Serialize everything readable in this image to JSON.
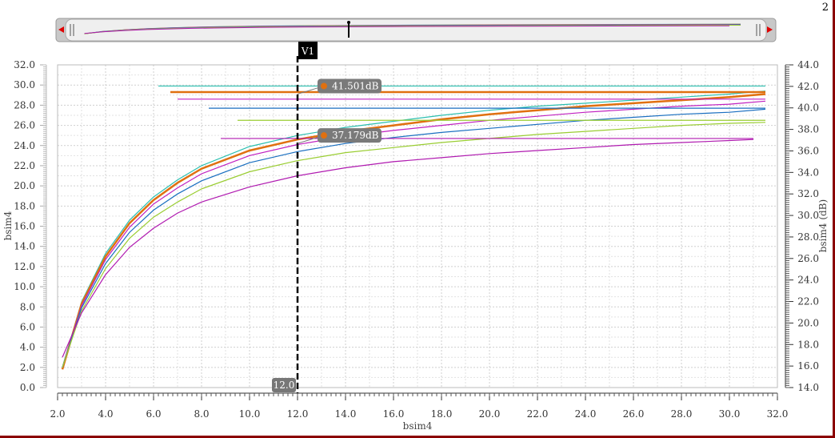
{
  "window": {
    "corner_label": "2"
  },
  "chart_data": {
    "type": "line",
    "title": "",
    "xlabel": "bsim4",
    "ylabel_left": "bsim4",
    "ylabel_right": "bsim4 (dB)",
    "xlim": [
      2.0,
      32.0
    ],
    "ylim_left": [
      0.0,
      32.0
    ],
    "ylim_right": [
      14.0,
      44.0
    ],
    "x_ticks": [
      "2.0",
      "4.0",
      "6.0",
      "8.0",
      "10.0",
      "12.0",
      "14.0",
      "16.0",
      "18.0",
      "20.0",
      "22.0",
      "24.0",
      "26.0",
      "28.0",
      "30.0",
      "32.0"
    ],
    "y_ticks_left": [
      "0.0",
      "2.0",
      "4.0",
      "6.0",
      "8.0",
      "10.0",
      "12.0",
      "14.0",
      "16.0",
      "18.0",
      "20.0",
      "22.0",
      "24.0",
      "26.0",
      "28.0",
      "30.0",
      "32.0"
    ],
    "y_ticks_right": [
      "14.0",
      "16.0",
      "18.0",
      "20.0",
      "22.0",
      "24.0",
      "26.0",
      "28.0",
      "30.0",
      "32.0",
      "34.0",
      "36.0",
      "38.0",
      "40.0",
      "42.0",
      "44.0"
    ],
    "grid": true,
    "cursor": {
      "name": "V1",
      "x": 12.0,
      "x_label": "12.0"
    },
    "markers": [
      {
        "label": "41.501dB",
        "x": 13.1,
        "y": 29.9
      },
      {
        "label": "37.179dB",
        "x": 13.1,
        "y": 25.0
      }
    ],
    "series": [
      {
        "color": "#2bbfb0",
        "x": [
          2.2,
          3,
          4,
          5,
          6,
          7,
          8,
          10,
          12,
          14,
          16,
          18,
          20,
          22,
          24,
          26,
          28,
          30,
          31.5
        ],
        "y": [
          2,
          8.5,
          13.3,
          16.6,
          18.9,
          20.6,
          22,
          23.9,
          25,
          25.8,
          26.4,
          27,
          27.5,
          27.9,
          28.2,
          28.5,
          28.8,
          29.1,
          29.4
        ],
        "flat": {
          "x": [
            6.2,
            31.5
          ],
          "y": 29.9
        }
      },
      {
        "color": "#e07010",
        "width": 2.5,
        "x": [
          2.2,
          3,
          4,
          5,
          6,
          7,
          8,
          10,
          12,
          14,
          16,
          18,
          20,
          22,
          24,
          26,
          28,
          30,
          31.5
        ],
        "y": [
          1.8,
          8.3,
          13,
          16.3,
          18.6,
          20.3,
          21.7,
          23.5,
          24.6,
          25.4,
          26,
          26.6,
          27.1,
          27.5,
          27.9,
          28.2,
          28.5,
          28.8,
          29.1
        ],
        "flat": {
          "x": [
            6.7,
            31.5
          ],
          "y": 29.3
        }
      },
      {
        "color": "#c020c0",
        "x": [
          2.2,
          3,
          4,
          5,
          6,
          7,
          8,
          10,
          12,
          14,
          16,
          18,
          20,
          22,
          24,
          26,
          28,
          30,
          31.5
        ],
        "y": [
          2,
          8.1,
          12.7,
          15.9,
          18.2,
          19.8,
          21.2,
          23,
          24.1,
          24.9,
          25.5,
          26,
          26.5,
          26.9,
          27.3,
          27.6,
          27.9,
          28.1,
          28.4
        ],
        "flat": {
          "x": [
            7.0,
            31.5
          ],
          "y": 28.6
        }
      },
      {
        "color": "#1a6fc0",
        "x": [
          2.2,
          3,
          4,
          5,
          6,
          7,
          8,
          10,
          12,
          14,
          16,
          18,
          20,
          22,
          24,
          26,
          28,
          30,
          31.5
        ],
        "y": [
          2,
          7.9,
          12.3,
          15.4,
          17.6,
          19.2,
          20.5,
          22.3,
          23.4,
          24.2,
          24.8,
          25.3,
          25.7,
          26.1,
          26.5,
          26.8,
          27.1,
          27.3,
          27.6
        ],
        "flat": {
          "x": [
            8.3,
            31.5
          ],
          "y": 27.7
        }
      },
      {
        "color": "#9acd32",
        "x": [
          2.2,
          3,
          4,
          5,
          6,
          7,
          8,
          10,
          12,
          14,
          16,
          18,
          20,
          22,
          24,
          26,
          28,
          30,
          31.5
        ],
        "y": [
          2,
          7.6,
          11.8,
          14.8,
          16.9,
          18.4,
          19.7,
          21.4,
          22.5,
          23.3,
          23.8,
          24.3,
          24.7,
          25.1,
          25.4,
          25.7,
          26,
          26.2,
          26.3
        ],
        "flat": {
          "x": [
            9.5,
            31.5
          ],
          "y": 26.5
        }
      },
      {
        "color": "#b01ab0",
        "x": [
          2.2,
          3,
          4,
          5,
          6,
          7,
          8,
          10,
          12,
          14,
          16,
          18,
          20,
          22,
          24,
          26,
          28,
          30,
          31
        ],
        "y": [
          3,
          7.4,
          11.2,
          13.9,
          15.8,
          17.3,
          18.4,
          19.9,
          21,
          21.8,
          22.4,
          22.8,
          23.2,
          23.5,
          23.8,
          24.1,
          24.3,
          24.5,
          24.6
        ],
        "flat": {
          "x": [
            8.8,
            31
          ],
          "y": 24.7
        }
      }
    ]
  }
}
